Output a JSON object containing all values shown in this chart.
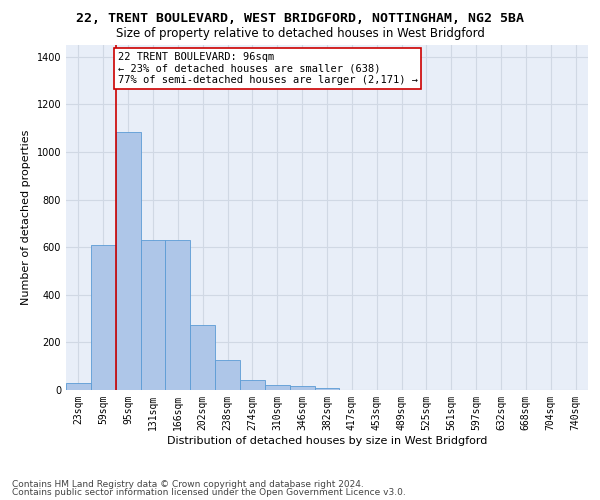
{
  "title": "22, TRENT BOULEVARD, WEST BRIDGFORD, NOTTINGHAM, NG2 5BA",
  "subtitle": "Size of property relative to detached houses in West Bridgford",
  "xlabel": "Distribution of detached houses by size in West Bridgford",
  "ylabel": "Number of detached properties",
  "categories": [
    "23sqm",
    "59sqm",
    "95sqm",
    "131sqm",
    "166sqm",
    "202sqm",
    "238sqm",
    "274sqm",
    "310sqm",
    "346sqm",
    "382sqm",
    "417sqm",
    "453sqm",
    "489sqm",
    "525sqm",
    "561sqm",
    "597sqm",
    "632sqm",
    "668sqm",
    "704sqm",
    "740sqm"
  ],
  "values": [
    30,
    610,
    1085,
    630,
    630,
    275,
    125,
    42,
    23,
    18,
    10,
    0,
    0,
    0,
    0,
    0,
    0,
    0,
    0,
    0,
    0
  ],
  "bar_color": "#aec6e8",
  "bar_edge_color": "#5b9bd5",
  "vline_x_left_edge": 1.5,
  "vline_color": "#cc0000",
  "annotation_line1": "22 TRENT BOULEVARD: 96sqm",
  "annotation_line2": "← 23% of detached houses are smaller (638)",
  "annotation_line3": "77% of semi-detached houses are larger (2,171) →",
  "annotation_box_color": "#ffffff",
  "annotation_box_edge_color": "#cc0000",
  "ylim": [
    0,
    1450
  ],
  "yticks": [
    0,
    200,
    400,
    600,
    800,
    1000,
    1200,
    1400
  ],
  "grid_color": "#d0d8e4",
  "bg_color": "#e8eef8",
  "footer_line1": "Contains HM Land Registry data © Crown copyright and database right 2024.",
  "footer_line2": "Contains public sector information licensed under the Open Government Licence v3.0.",
  "title_fontsize": 9.5,
  "subtitle_fontsize": 8.5,
  "axis_label_fontsize": 8,
  "tick_fontsize": 7,
  "annotation_fontsize": 7.5,
  "footer_fontsize": 6.5
}
